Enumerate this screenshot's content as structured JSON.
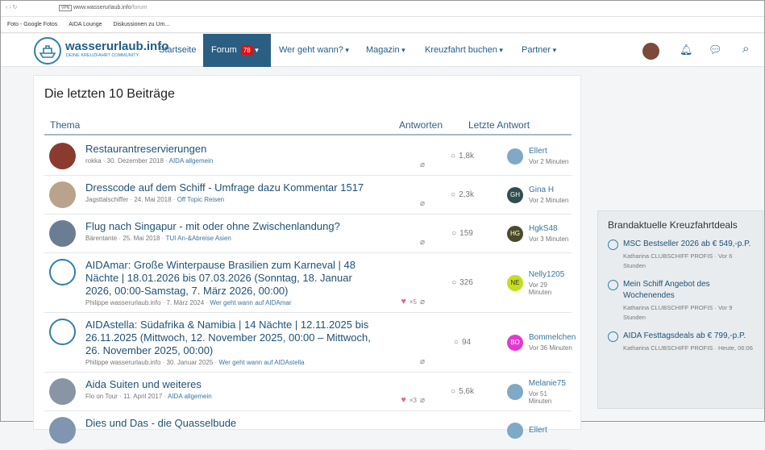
{
  "browser": {
    "url_host": "www.wasserurlaub.info",
    "url_path": "/forum",
    "bookmarks": [
      "Foto - Google Fotos",
      "AIDA Lounge",
      "Diskussionen zu Um..."
    ]
  },
  "nav": {
    "logo_title": "wasserurlaub.info",
    "logo_tagline": "DEINE KREUZFAHRT COMMUNITY",
    "items": [
      "Startseite",
      "Forum",
      "Wer geht wann?",
      "Magazin",
      "Kreuzfahrt buchen",
      "Partner"
    ],
    "forum_badge": 78
  },
  "main": {
    "title": "Die letzten 10 Beiträge",
    "headers": [
      "Thema",
      "Antworten",
      "Letzte Antwort"
    ],
    "rows": [
      {
        "title": "Restaurantreservierungen",
        "author": "rokka",
        "date": "30. Dezember 2018",
        "forum": "AIDA allgemein",
        "replies": "1,8k",
        "last_user": "Ellert",
        "last_time": "Vor 2 Minuten"
      },
      {
        "title": "Dresscode auf dem Schiff - Umfrage dazu Kommentar 1517",
        "author": "Jagsttalschiffer",
        "date": "24. Mai 2018",
        "forum": "Off Topic Reisen",
        "replies": "2,3k",
        "last_user": "Gina H",
        "initials": "GH",
        "last_time": "Vor 2 Minuten"
      },
      {
        "title": "Flug nach Singapur - mit oder ohne Zwischenlandung?",
        "author": "Bärentante",
        "date": "25. Mai 2018",
        "forum": "TUI An-&Abreise Asien",
        "replies": "159",
        "last_user": "HgkS48",
        "initials": "HG",
        "last_time": "Vor 3 Minuten"
      },
      {
        "title": "AIDAmar: Große Winterpause Brasilien zum Karneval | 48 Nächte | 18.01.2026 bis 07.03.2026 (Sonntag, 18. Januar 2026, 00:00-Samstag, 7. März 2026, 00:00)",
        "author": "Philippe wasserurlaub.info",
        "date": "7. März 2024",
        "forum": "Wer geht wann auf AIDAmar",
        "likes": "×5",
        "replies": "326",
        "last_user": "Nelly1205",
        "initials": "NE",
        "last_time": "Vor 29 Minuten"
      },
      {
        "title": "AIDAstella: Südafrika & Namibia | 14 Nächte | 12.11.2025 bis 26.11.2025 (Mittwoch, 12. November 2025, 00:00 – Mittwoch, 26. November 2025, 00:00)",
        "author": "Philippe wasserurlaub.info",
        "date": "30. Januar 2025",
        "forum": "Wer geht wann auf AIDAstella",
        "replies": "94",
        "last_user": "Bommelchen",
        "initials": "BO",
        "last_time": "Vor 36 Minuten"
      },
      {
        "title": "Aida Suiten und weiteres",
        "author": "Flo on Tour",
        "date": "11. April 2017",
        "forum": "AIDA allgemein",
        "likes": "×3",
        "replies": "5,6k",
        "last_user": "Melanie75",
        "last_time": "Vor 51 Minuten"
      },
      {
        "title": "Dies und Das - die Quasselbude",
        "last_user": "Ellert"
      }
    ]
  },
  "sidebar": {
    "title": "Brandaktuelle Kreuzfahrtdeals",
    "items": [
      {
        "title": "MSC Bestseller 2026 ab € 549,-p.P.",
        "author": "Katharina CLUBSCHIFF PROFIS",
        "time": "Vor 6 Stunden"
      },
      {
        "title": "Mein Schiff Angebot des Wochenendes",
        "author": "Katharina CLUBSCHIFF PROFIS",
        "time": "Vor 9 Stunden"
      },
      {
        "title": "AIDA Festtagsdeals ab € 799,-p.P.",
        "author": "Katharina CLUBSCHIFF PROFIS",
        "time": "Heute, 06:06"
      }
    ]
  }
}
